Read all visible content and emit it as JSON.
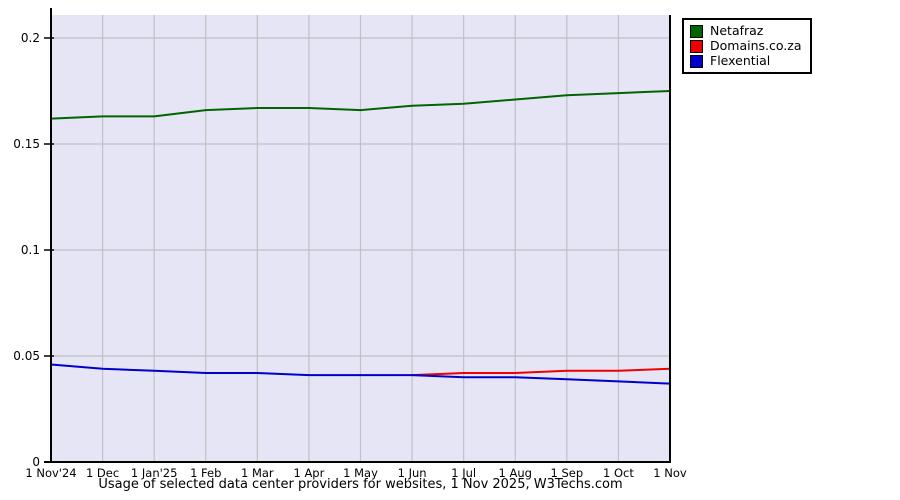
{
  "colors": {
    "outer_bg": "#ffffff",
    "plot_bg": "#e5e5f5",
    "grid": "#c0c0c6",
    "axis": "#000000",
    "text": "#000000"
  },
  "chart_data": {
    "type": "line",
    "title": "Usage of selected data center providers for websites, 1 Nov 2025, W3Techs.com",
    "categories": [
      "1 Nov'24",
      "1 Dec",
      "1 Jan'25",
      "1 Feb",
      "1 Mar",
      "1 Apr",
      "1 May",
      "1 Jun",
      "1 Jul",
      "1 Aug",
      "1 Sep",
      "1 Oct",
      "1 Nov"
    ],
    "series": [
      {
        "name": "Netafraz",
        "color": "#006400",
        "values": [
          0.162,
          0.163,
          0.163,
          0.166,
          0.167,
          0.167,
          0.166,
          0.168,
          0.169,
          0.171,
          0.173,
          0.174,
          0.175
        ]
      },
      {
        "name": "Domains.co.za",
        "color": "#ee0000",
        "values": [
          null,
          null,
          null,
          null,
          null,
          null,
          null,
          0.041,
          0.042,
          0.042,
          0.043,
          0.043,
          0.044
        ]
      },
      {
        "name": "Flexential",
        "color": "#0000cc",
        "values": [
          0.046,
          0.044,
          0.043,
          0.042,
          0.042,
          0.041,
          0.041,
          0.041,
          0.04,
          0.04,
          0.039,
          0.038,
          0.037
        ]
      }
    ],
    "xlabel": "",
    "ylabel": "",
    "ylim": [
      0,
      0.21
    ],
    "yticks": [
      0,
      0.05,
      0.1,
      0.15,
      0.2
    ],
    "ytick_labels": [
      "0",
      "0.05",
      "0.1",
      "0.15",
      "0.2"
    ],
    "grid": true,
    "legend_position": "top-right-outside"
  }
}
